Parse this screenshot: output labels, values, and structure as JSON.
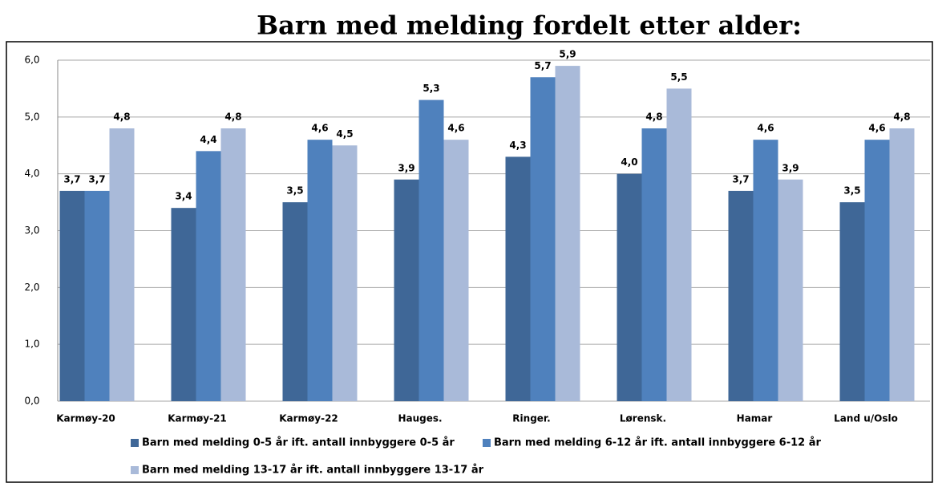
{
  "chart_data": {
    "type": "bar",
    "title": "Barn med melding fordelt etter alder:",
    "categories": [
      "Karmøy-20",
      "Karmøy-21",
      "Karmøy-22",
      "Hauges.",
      "Ringer.",
      "Lørensk.",
      "Hamar",
      "Land u/Oslo"
    ],
    "series": [
      {
        "name": "Barn med melding 0-5 år ift. antall innbyggere 0-5 år",
        "color": "#3f6797",
        "values": [
          3.7,
          3.4,
          3.5,
          3.9,
          4.3,
          4.0,
          3.7,
          3.5
        ],
        "value_labels": [
          "3,7",
          "3,4",
          "3,5",
          "3,9",
          "4,3",
          "4,0",
          "3,7",
          "3,5"
        ]
      },
      {
        "name": "Barn med melding 6-12 år ift. antall innbyggere 6-12 år",
        "color": "#4f81bd",
        "values": [
          3.7,
          4.4,
          4.6,
          5.3,
          5.7,
          4.8,
          4.6,
          4.6
        ],
        "value_labels": [
          "3,7",
          "4,4",
          "4,6",
          "5,3",
          "5,7",
          "4,8",
          "4,6",
          "4,6"
        ]
      },
      {
        "name": "Barn med melding 13-17 år ift. antall innbyggere 13-17 år",
        "color": "#a9bad9",
        "values": [
          4.8,
          4.8,
          4.5,
          4.6,
          5.9,
          5.5,
          3.9,
          4.8
        ],
        "value_labels": [
          "4,8",
          "4,8",
          "4,5",
          "4,6",
          "5,9",
          "5,5",
          "3,9",
          "4,8"
        ]
      }
    ],
    "ylim": [
      0,
      6
    ],
    "yticks": [
      {
        "value": 0,
        "label": "0,0"
      },
      {
        "value": 1,
        "label": "1,0"
      },
      {
        "value": 2,
        "label": "2,0"
      },
      {
        "value": 3,
        "label": "3,0"
      },
      {
        "value": 4,
        "label": "4,0"
      },
      {
        "value": 5,
        "label": "5,0"
      },
      {
        "value": 6,
        "label": "6,0"
      }
    ],
    "grid": true,
    "legend": "bottom"
  }
}
